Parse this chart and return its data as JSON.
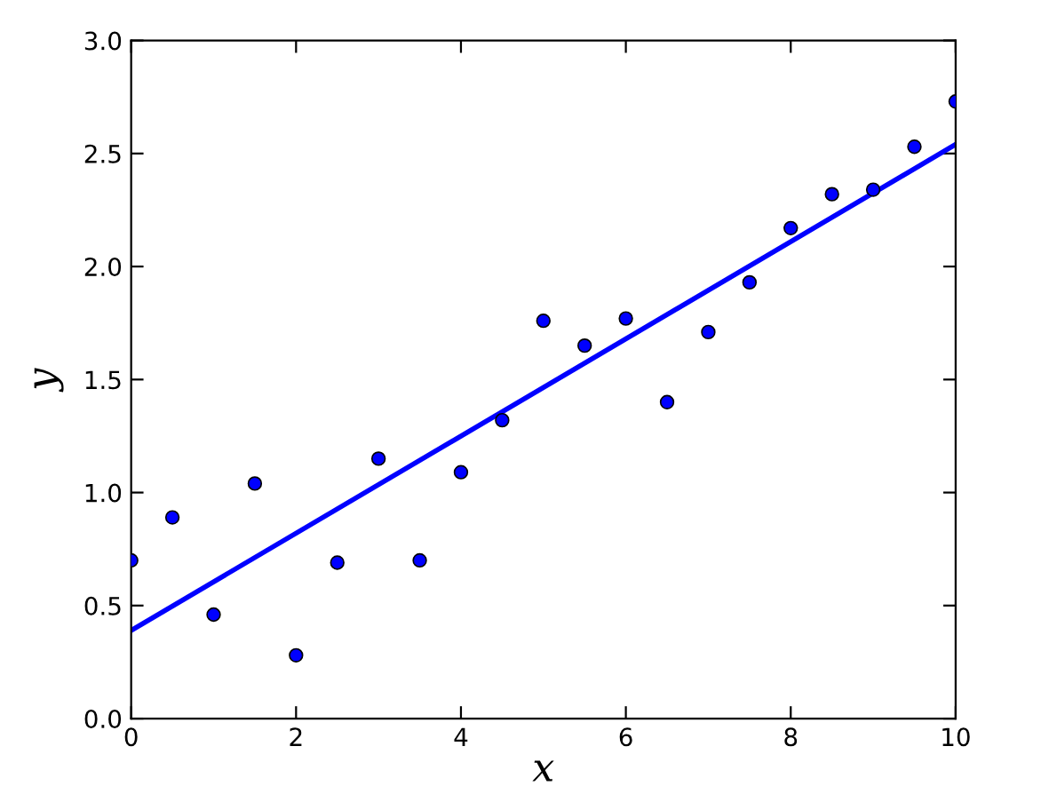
{
  "chart_data": {
    "type": "scatter",
    "xlabel": "x",
    "ylabel": "y",
    "xlim": [
      0,
      10
    ],
    "ylim": [
      0,
      3.0
    ],
    "xticks": [
      0,
      2,
      4,
      6,
      8,
      10
    ],
    "yticks": [
      {
        "value": 0,
        "label": "0.0"
      },
      {
        "value": 0.5,
        "label": "0.5"
      },
      {
        "value": 1.0,
        "label": "1.0"
      },
      {
        "value": 1.5,
        "label": "1.5"
      },
      {
        "value": 2.0,
        "label": "2.0"
      },
      {
        "value": 2.5,
        "label": "2.5"
      },
      {
        "value": 3.0,
        "label": "3.0"
      }
    ],
    "grid": false,
    "series": [
      {
        "color": "#0000ff",
        "marker": "circle",
        "x": [
          0,
          0.5,
          1,
          1.5,
          2,
          2.5,
          3,
          3.5,
          4,
          4.5,
          5,
          5.5,
          6,
          6.5,
          7,
          7.5,
          8,
          8.5,
          9,
          9.5,
          10
        ],
        "values": [
          0.7,
          0.89,
          0.46,
          1.04,
          0.28,
          0.69,
          1.15,
          0.7,
          1.09,
          1.32,
          1.76,
          1.65,
          1.77,
          1.4,
          1.71,
          1.93,
          2.17,
          2.32,
          2.34,
          2.53,
          2.73
        ]
      },
      {
        "type": "line",
        "color": "#0000ff",
        "line_style": "solid",
        "marker": "none",
        "x": [
          0,
          10
        ],
        "values": [
          0.39,
          2.54
        ]
      }
    ]
  }
}
